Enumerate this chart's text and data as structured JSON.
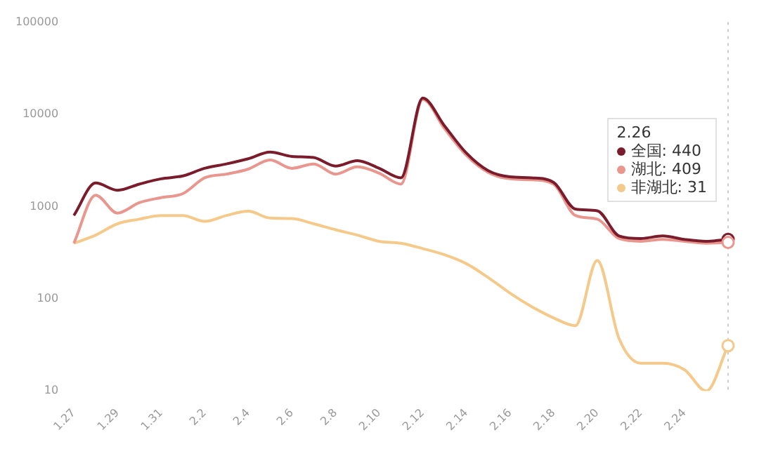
{
  "chart_data": {
    "type": "line",
    "categories": [
      "1.27",
      null,
      "1.29",
      null,
      "1.31",
      null,
      "2.2",
      null,
      "2.4",
      null,
      "2.6",
      null,
      "2.8",
      null,
      "2.10",
      null,
      "2.12",
      null,
      "2.14",
      null,
      "2.16",
      null,
      "2.18",
      null,
      "2.20",
      null,
      "2.22",
      null,
      "2.24",
      null,
      null
    ],
    "series": [
      {
        "color": "#7a1c2c",
        "values": [
          800,
          1800,
          1500,
          1750,
          2000,
          2150,
          2600,
          2900,
          3300,
          3900,
          3500,
          3400,
          2750,
          3150,
          2600,
          2050,
          15000,
          7500,
          3800,
          2450,
          2100,
          2050,
          1830,
          940,
          900,
          480,
          450,
          480,
          440,
          420,
          440
        ]
      },
      {
        "color": "#e8968e",
        "values": [
          400,
          1330,
          850,
          1100,
          1250,
          1380,
          2050,
          2250,
          2550,
          3200,
          2600,
          2900,
          2250,
          2700,
          2300,
          1750,
          14500,
          7000,
          3600,
          2350,
          2000,
          1950,
          1750,
          800,
          730,
          450,
          420,
          440,
          420,
          400,
          409
        ]
      },
      {
        "color": "#f5c98a",
        "values": [
          400,
          490,
          650,
          730,
          800,
          800,
          690,
          800,
          890,
          750,
          740,
          650,
          560,
          490,
          420,
          400,
          350,
          300,
          240,
          170,
          115,
          82,
          62,
          51,
          260,
          37,
          20,
          20,
          17,
          10,
          31
        ]
      }
    ],
    "log": true,
    "ylim": [
      10,
      100000
    ],
    "yticks": [
      10,
      100,
      1000,
      10000,
      100000
    ],
    "grid": false,
    "legend": false,
    "marker": "none",
    "line_style": "solid",
    "annotations": [
      "2.26",
      "全国: 440",
      "湖北: 409",
      "非湖北: 31"
    ]
  }
}
